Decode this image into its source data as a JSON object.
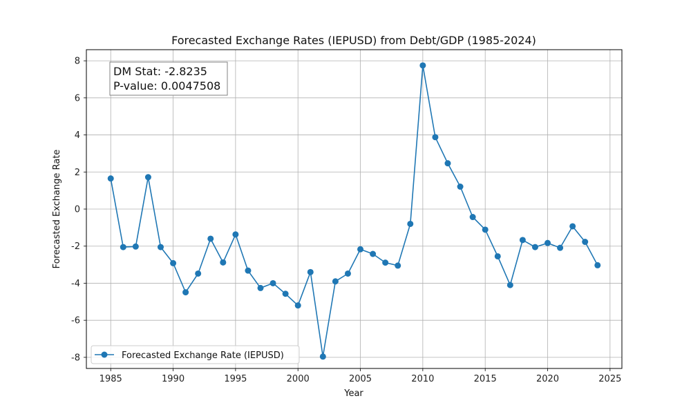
{
  "chart_data": {
    "type": "line",
    "title": "Forecasted Exchange Rates (IEPUSD) from Debt/GDP (1985-2024)",
    "xlabel": "Year",
    "ylabel": "Forecasted Exchange Rate",
    "xlim": [
      1983.05,
      2025.95
    ],
    "ylim": [
      -8.6,
      8.6
    ],
    "xticks": [
      1985,
      1990,
      1995,
      2000,
      2005,
      2010,
      2015,
      2020,
      2025
    ],
    "yticks": [
      -8,
      -6,
      -4,
      -2,
      0,
      2,
      4,
      6,
      8
    ],
    "grid": true,
    "legend_position": "lower-left",
    "series": [
      {
        "name": "Forecasted Exchange Rate (IEPUSD)",
        "color": "#1f77b4",
        "marker": "circle",
        "x": [
          1985,
          1986,
          1987,
          1988,
          1989,
          1990,
          1991,
          1992,
          1993,
          1994,
          1995,
          1996,
          1997,
          1998,
          1999,
          2000,
          2001,
          2002,
          2003,
          2004,
          2005,
          2006,
          2007,
          2008,
          2009,
          2010,
          2011,
          2012,
          2013,
          2014,
          2015,
          2016,
          2017,
          2018,
          2019,
          2020,
          2021,
          2022,
          2023,
          2024
        ],
        "values": [
          1.65,
          -2.05,
          -2.02,
          1.72,
          -2.05,
          -2.92,
          -4.49,
          -3.48,
          -1.6,
          -2.88,
          -1.37,
          -3.32,
          -4.26,
          -4.0,
          -4.57,
          -5.2,
          -3.4,
          -7.96,
          -3.9,
          -3.48,
          -2.17,
          -2.42,
          -2.89,
          -3.05,
          -0.8,
          7.75,
          3.88,
          2.47,
          1.21,
          -0.43,
          -1.11,
          -2.55,
          -4.1,
          -1.67,
          -2.05,
          -1.83,
          -2.09,
          -0.93,
          -1.77,
          -3.03
        ]
      }
    ],
    "annotation": {
      "lines": [
        "DM Stat: -2.8235",
        "P-value: 0.0047508"
      ],
      "position": "top-left"
    }
  }
}
